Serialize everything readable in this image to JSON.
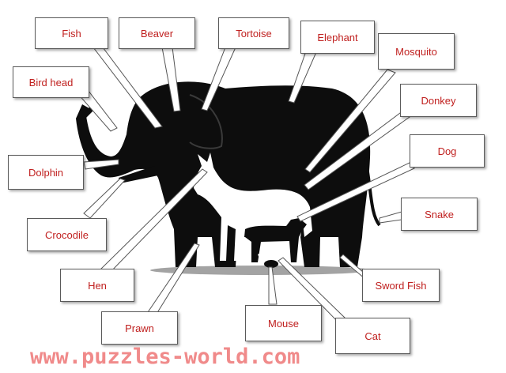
{
  "labels": {
    "fish": "Fish",
    "beaver": "Beaver",
    "tortoise": "Tortoise",
    "elephant": "Elephant",
    "mosquito": "Mosquito",
    "bird_head": "Bird head",
    "donkey": "Donkey",
    "dolphin": "Dolphin",
    "dog": "Dog",
    "snake": "Snake",
    "crocodile": "Crocodile",
    "hen": "Hen",
    "sword_fish": "Sword Fish",
    "prawn": "Prawn",
    "mouse": "Mouse",
    "cat": "Cat"
  },
  "watermark": "www.puzzles-world.com",
  "colors": {
    "label_text": "#c0201f",
    "silhouette": "#0d0d0d",
    "donkey": "#ffffff",
    "watermark": "#f08a8a"
  }
}
